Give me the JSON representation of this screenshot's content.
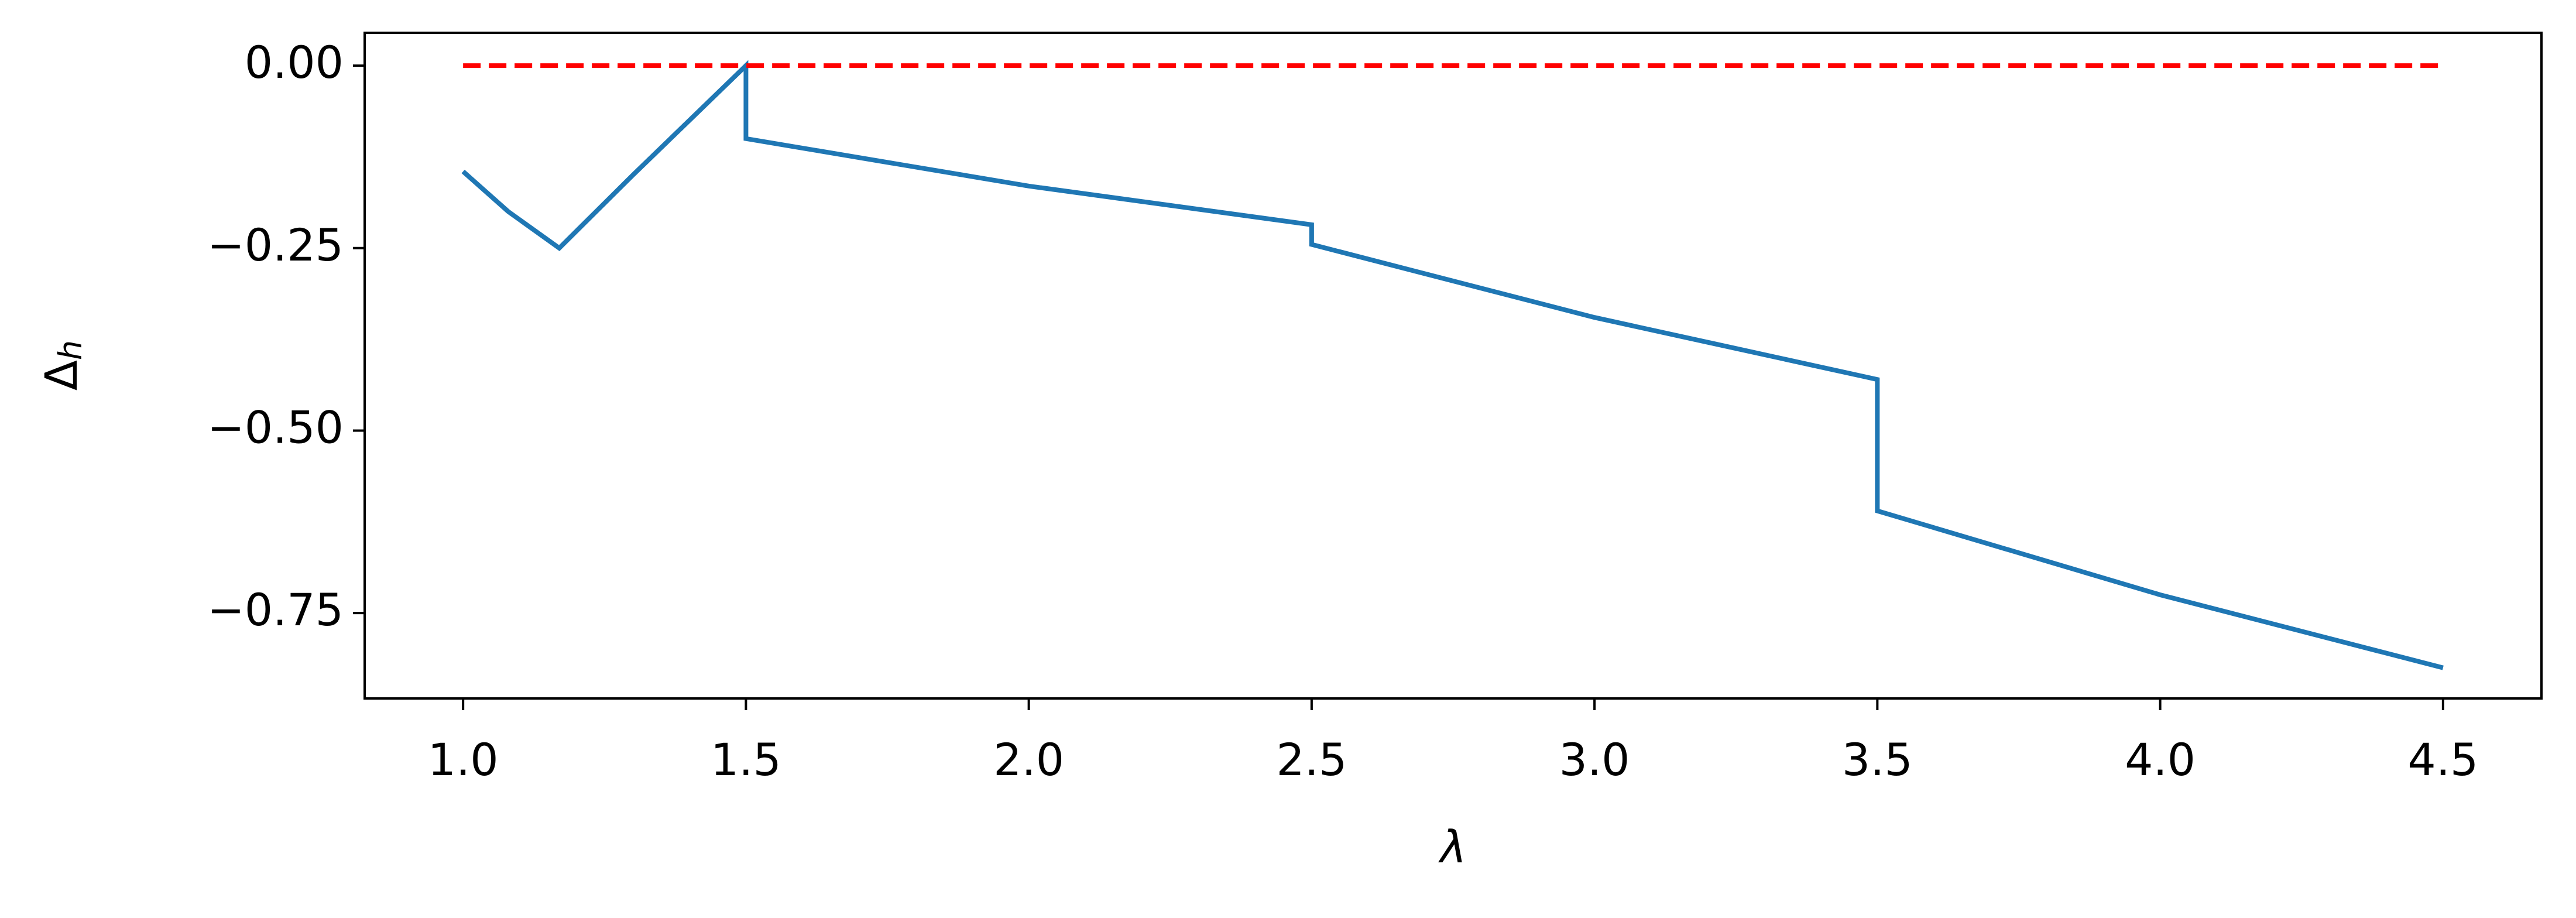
{
  "chart_data": {
    "type": "line",
    "x_label": "λ",
    "y_label": {
      "base": "Δ",
      "sub": "h"
    },
    "series": [
      {
        "color": "#1f77b4",
        "dash": "solid",
        "x": [
          1.0,
          1.08,
          1.17,
          1.3,
          1.4,
          1.5,
          1.5,
          2.0,
          2.5,
          2.5,
          3.0,
          3.5,
          3.5,
          4.0,
          4.5
        ],
        "values": [
          -0.145,
          -0.2,
          -0.25,
          -0.15,
          -0.075,
          0.0,
          -0.1,
          -0.165,
          -0.218,
          -0.245,
          -0.345,
          -0.43,
          -0.61,
          -0.725,
          -0.825
        ]
      },
      {
        "color": "#ff0000",
        "dash": "dashed",
        "x": [
          1.0,
          4.5
        ],
        "values": [
          0.0,
          0.0
        ]
      }
    ],
    "xlim": [
      0.826,
      4.674
    ],
    "ylim": [
      -0.867,
      0.045
    ],
    "xticks": [
      {
        "value": 1.0,
        "label": "1.0"
      },
      1.5,
      {
        "value": 2.0,
        "label": "2.0"
      },
      2.5,
      {
        "value": 3.0,
        "label": "3.0"
      },
      3.5,
      {
        "value": 4.0,
        "label": "4.0"
      },
      4.5
    ],
    "yticks": [
      {
        "value": 0.0,
        "label": "0.00"
      },
      {
        "value": -0.25,
        "label": "−0.25"
      },
      {
        "value": -0.5,
        "label": "−0.50"
      },
      {
        "value": -0.75,
        "label": "−0.75"
      }
    ],
    "grid": false
  }
}
